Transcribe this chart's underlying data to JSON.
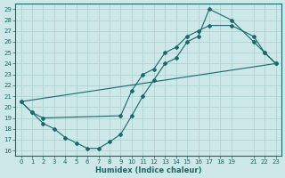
{
  "title": "",
  "xlabel": "Humidex (Indice chaleur)",
  "bg_color": "#cce8e8",
  "grid_color": "#aacece",
  "line_color": "#1a6868",
  "xlim": [
    -0.5,
    23.5
  ],
  "ylim": [
    15.5,
    29.5
  ],
  "xticks": [
    0,
    1,
    2,
    3,
    4,
    5,
    6,
    7,
    8,
    9,
    10,
    11,
    12,
    13,
    14,
    15,
    16,
    17,
    18,
    19,
    21,
    22,
    23
  ],
  "yticks": [
    16,
    17,
    18,
    19,
    20,
    21,
    22,
    23,
    24,
    25,
    26,
    27,
    28,
    29
  ],
  "series1_x": [
    0,
    1,
    2,
    3,
    4,
    5,
    6,
    7,
    8,
    9,
    10,
    11,
    12,
    13,
    14,
    15,
    16,
    17,
    19,
    21,
    22,
    23
  ],
  "series1_y": [
    20.5,
    19.5,
    18.5,
    18.0,
    17.2,
    16.7,
    16.2,
    16.2,
    16.8,
    17.5,
    19.2,
    21.0,
    22.5,
    24.0,
    24.5,
    26.0,
    26.5,
    29.0,
    28.0,
    26.0,
    25.0,
    24.0
  ],
  "series2_x": [
    0,
    1,
    2,
    9,
    10,
    11,
    12,
    13,
    14,
    15,
    16,
    17,
    19,
    21,
    22,
    23
  ],
  "series2_y": [
    20.5,
    19.5,
    19.0,
    19.2,
    21.5,
    23.0,
    23.5,
    25.0,
    25.5,
    26.5,
    27.0,
    27.5,
    27.5,
    26.5,
    25.0,
    24.0
  ],
  "series3_x": [
    0,
    23
  ],
  "series3_y": [
    20.5,
    24.0
  ]
}
